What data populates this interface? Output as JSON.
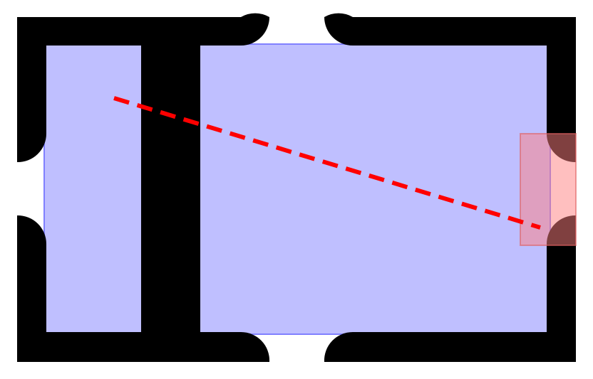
{
  "diagram": {
    "colors": {
      "background": "#ffffff",
      "walls": "#000000",
      "room_fill": "#bfbfff",
      "room_outline": "#8080ff",
      "goal_fill": "#ffbfbf",
      "goal_outline": "#e06060",
      "path": "#ff0000"
    },
    "elements": [
      "wall-frame",
      "room-region",
      "goal-region",
      "path-line"
    ]
  }
}
